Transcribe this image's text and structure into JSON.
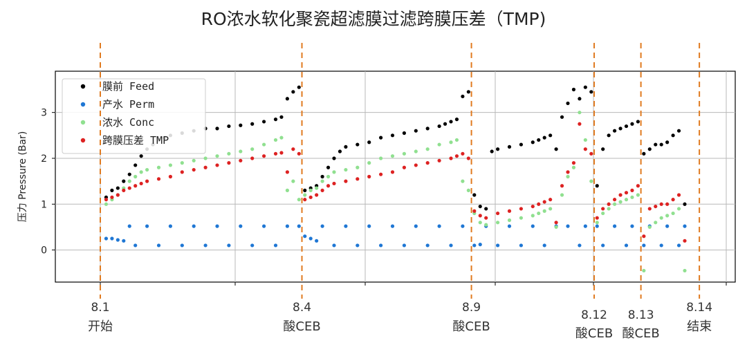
{
  "chart_data": {
    "type": "scatter",
    "title": "RO浓水软化聚瓷超滤膜过滤跨膜压差（TMP)",
    "ylabel": "压力 Pressure (Bar)",
    "ylim": [
      -0.7,
      3.9
    ],
    "xlim": [
      0,
      100
    ],
    "yticks": [
      0,
      1,
      2,
      3
    ],
    "grid": true,
    "legend_position": "top-left",
    "series": [
      {
        "name": "膜前 Feed",
        "color": "#000000",
        "points": [
          [
            1,
            1.15
          ],
          [
            2,
            1.3
          ],
          [
            3,
            1.35
          ],
          [
            4,
            1.5
          ],
          [
            5,
            1.65
          ],
          [
            6,
            1.85
          ],
          [
            7,
            2.05
          ],
          [
            8,
            2.2
          ],
          [
            9,
            2.3
          ],
          [
            10,
            2.4
          ],
          [
            11,
            2.45
          ],
          [
            12,
            2.5
          ],
          [
            14,
            2.55
          ],
          [
            16,
            2.6
          ],
          [
            18,
            2.65
          ],
          [
            20,
            2.65
          ],
          [
            22,
            2.7
          ],
          [
            24,
            2.72
          ],
          [
            26,
            2.75
          ],
          [
            28,
            2.8
          ],
          [
            30,
            2.85
          ],
          [
            31,
            2.9
          ],
          [
            32,
            3.3
          ],
          [
            33,
            3.45
          ],
          [
            34,
            3.55
          ],
          [
            35,
            1.3
          ],
          [
            36,
            1.35
          ],
          [
            37,
            1.4
          ],
          [
            38,
            1.6
          ],
          [
            39,
            1.8
          ],
          [
            40,
            2.0
          ],
          [
            41,
            2.15
          ],
          [
            42,
            2.25
          ],
          [
            44,
            2.3
          ],
          [
            46,
            2.35
          ],
          [
            48,
            2.45
          ],
          [
            50,
            2.5
          ],
          [
            52,
            2.55
          ],
          [
            54,
            2.6
          ],
          [
            56,
            2.65
          ],
          [
            58,
            2.7
          ],
          [
            59,
            2.75
          ],
          [
            60,
            2.8
          ],
          [
            61,
            2.85
          ],
          [
            62,
            3.35
          ],
          [
            63,
            3.45
          ],
          [
            64,
            1.2
          ],
          [
            65,
            0.95
          ],
          [
            66,
            0.9
          ],
          [
            67,
            2.15
          ],
          [
            68,
            2.2
          ],
          [
            70,
            2.25
          ],
          [
            72,
            2.3
          ],
          [
            74,
            2.35
          ],
          [
            75,
            2.4
          ],
          [
            76,
            2.45
          ],
          [
            77,
            2.5
          ],
          [
            78,
            2.2
          ],
          [
            79,
            2.9
          ],
          [
            80,
            3.2
          ],
          [
            81,
            3.5
          ],
          [
            82,
            3.3
          ],
          [
            83,
            3.55
          ],
          [
            84,
            3.45
          ],
          [
            85,
            1.4
          ],
          [
            86,
            2.2
          ],
          [
            87,
            2.5
          ],
          [
            88,
            2.6
          ],
          [
            89,
            2.65
          ],
          [
            90,
            2.7
          ],
          [
            91,
            2.75
          ],
          [
            92,
            2.8
          ],
          [
            93,
            2.1
          ],
          [
            94,
            2.2
          ],
          [
            95,
            2.3
          ],
          [
            96,
            2.3
          ],
          [
            97,
            2.35
          ],
          [
            98,
            2.5
          ],
          [
            99,
            2.6
          ],
          [
            100,
            1.0
          ]
        ]
      },
      {
        "name": "产水 Perm",
        "color": "#1f77d4",
        "points": [
          [
            1,
            0.25
          ],
          [
            2,
            0.25
          ],
          [
            3,
            0.22
          ],
          [
            4,
            0.2
          ],
          [
            5,
            0.52
          ],
          [
            8,
            0.52
          ],
          [
            12,
            0.52
          ],
          [
            16,
            0.52
          ],
          [
            20,
            0.52
          ],
          [
            24,
            0.52
          ],
          [
            28,
            0.52
          ],
          [
            32,
            0.52
          ],
          [
            34,
            0.52
          ],
          [
            35,
            0.3
          ],
          [
            36,
            0.25
          ],
          [
            37,
            0.2
          ],
          [
            38,
            0.52
          ],
          [
            42,
            0.52
          ],
          [
            46,
            0.52
          ],
          [
            50,
            0.52
          ],
          [
            54,
            0.52
          ],
          [
            58,
            0.52
          ],
          [
            62,
            0.52
          ],
          [
            64,
            0.1
          ],
          [
            65,
            0.12
          ],
          [
            66,
            0.52
          ],
          [
            70,
            0.52
          ],
          [
            74,
            0.52
          ],
          [
            78,
            0.52
          ],
          [
            80,
            0.52
          ],
          [
            83,
            0.52
          ],
          [
            85,
            0.52
          ],
          [
            88,
            0.52
          ],
          [
            91,
            0.52
          ],
          [
            93,
            0.1
          ],
          [
            94,
            0.52
          ],
          [
            97,
            0.52
          ],
          [
            100,
            0.52
          ],
          [
            6,
            0.1
          ],
          [
            10,
            0.1
          ],
          [
            14,
            0.1
          ],
          [
            18,
            0.1
          ],
          [
            22,
            0.1
          ],
          [
            26,
            0.1
          ],
          [
            30,
            0.1
          ],
          [
            40,
            0.1
          ],
          [
            44,
            0.1
          ],
          [
            48,
            0.1
          ],
          [
            52,
            0.1
          ],
          [
            56,
            0.1
          ],
          [
            60,
            0.1
          ],
          [
            68,
            0.1
          ],
          [
            72,
            0.1
          ],
          [
            76,
            0.1
          ],
          [
            82,
            0.1
          ],
          [
            86,
            0.1
          ],
          [
            90,
            0.1
          ],
          [
            96,
            0.1
          ],
          [
            99,
            0.1
          ]
        ]
      },
      {
        "name": "浓水 Conc",
        "color": "#90e090",
        "points": [
          [
            1,
            1.0
          ],
          [
            2,
            1.1
          ],
          [
            3,
            1.2
          ],
          [
            4,
            1.35
          ],
          [
            5,
            1.5
          ],
          [
            6,
            1.6
          ],
          [
            7,
            1.7
          ],
          [
            8,
            1.75
          ],
          [
            10,
            1.8
          ],
          [
            12,
            1.85
          ],
          [
            14,
            1.9
          ],
          [
            16,
            1.95
          ],
          [
            18,
            2.0
          ],
          [
            20,
            2.05
          ],
          [
            22,
            2.1
          ],
          [
            24,
            2.15
          ],
          [
            26,
            2.2
          ],
          [
            28,
            2.3
          ],
          [
            30,
            2.4
          ],
          [
            31,
            2.45
          ],
          [
            32,
            1.3
          ],
          [
            33,
            1.5
          ],
          [
            34,
            1.1
          ],
          [
            35,
            1.2
          ],
          [
            36,
            1.3
          ],
          [
            37,
            1.35
          ],
          [
            38,
            1.5
          ],
          [
            39,
            1.6
          ],
          [
            40,
            1.7
          ],
          [
            42,
            1.75
          ],
          [
            44,
            1.8
          ],
          [
            46,
            1.9
          ],
          [
            48,
            2.0
          ],
          [
            50,
            2.05
          ],
          [
            52,
            2.1
          ],
          [
            54,
            2.15
          ],
          [
            56,
            2.2
          ],
          [
            58,
            2.3
          ],
          [
            60,
            2.35
          ],
          [
            61,
            2.4
          ],
          [
            62,
            1.5
          ],
          [
            63,
            1.3
          ],
          [
            64,
            0.8
          ],
          [
            65,
            0.6
          ],
          [
            66,
            0.55
          ],
          [
            68,
            0.6
          ],
          [
            70,
            0.65
          ],
          [
            72,
            0.7
          ],
          [
            74,
            0.75
          ],
          [
            75,
            0.8
          ],
          [
            76,
            0.85
          ],
          [
            77,
            0.9
          ],
          [
            78,
            0.5
          ],
          [
            79,
            1.2
          ],
          [
            80,
            1.6
          ],
          [
            81,
            1.8
          ],
          [
            82,
            3.0
          ],
          [
            83,
            2.4
          ],
          [
            84,
            1.5
          ],
          [
            85,
            0.6
          ],
          [
            86,
            0.8
          ],
          [
            87,
            0.9
          ],
          [
            88,
            1.0
          ],
          [
            89,
            1.05
          ],
          [
            90,
            1.1
          ],
          [
            91,
            1.15
          ],
          [
            92,
            1.2
          ],
          [
            93,
            -0.45
          ],
          [
            94,
            0.5
          ],
          [
            95,
            0.6
          ],
          [
            96,
            0.7
          ],
          [
            97,
            0.75
          ],
          [
            98,
            0.8
          ],
          [
            99,
            0.9
          ],
          [
            100,
            -0.45
          ]
        ]
      },
      {
        "name": "跨膜压差 TMP",
        "color": "#dd2222",
        "points": [
          [
            1,
            1.1
          ],
          [
            2,
            1.15
          ],
          [
            3,
            1.2
          ],
          [
            4,
            1.3
          ],
          [
            5,
            1.35
          ],
          [
            6,
            1.4
          ],
          [
            7,
            1.45
          ],
          [
            8,
            1.5
          ],
          [
            10,
            1.55
          ],
          [
            12,
            1.6
          ],
          [
            14,
            1.7
          ],
          [
            16,
            1.75
          ],
          [
            18,
            1.8
          ],
          [
            20,
            1.85
          ],
          [
            22,
            1.9
          ],
          [
            24,
            1.95
          ],
          [
            26,
            2.0
          ],
          [
            28,
            2.05
          ],
          [
            30,
            2.1
          ],
          [
            31,
            2.12
          ],
          [
            32,
            1.7
          ],
          [
            33,
            2.2
          ],
          [
            34,
            2.1
          ],
          [
            35,
            1.1
          ],
          [
            36,
            1.15
          ],
          [
            37,
            1.2
          ],
          [
            38,
            1.3
          ],
          [
            39,
            1.4
          ],
          [
            40,
            1.45
          ],
          [
            42,
            1.5
          ],
          [
            44,
            1.55
          ],
          [
            46,
            1.6
          ],
          [
            48,
            1.65
          ],
          [
            50,
            1.7
          ],
          [
            52,
            1.8
          ],
          [
            54,
            1.85
          ],
          [
            56,
            1.9
          ],
          [
            58,
            1.95
          ],
          [
            60,
            2.0
          ],
          [
            61,
            2.05
          ],
          [
            62,
            2.1
          ],
          [
            63,
            2.0
          ],
          [
            64,
            0.85
          ],
          [
            65,
            0.75
          ],
          [
            66,
            0.7
          ],
          [
            68,
            0.8
          ],
          [
            70,
            0.85
          ],
          [
            72,
            0.9
          ],
          [
            74,
            0.95
          ],
          [
            75,
            1.0
          ],
          [
            76,
            1.05
          ],
          [
            77,
            1.1
          ],
          [
            78,
            0.6
          ],
          [
            79,
            1.4
          ],
          [
            80,
            1.7
          ],
          [
            81,
            1.9
          ],
          [
            82,
            2.75
          ],
          [
            83,
            2.2
          ],
          [
            84,
            2.1
          ],
          [
            85,
            0.7
          ],
          [
            86,
            0.9
          ],
          [
            87,
            1.0
          ],
          [
            88,
            1.1
          ],
          [
            89,
            1.2
          ],
          [
            90,
            1.25
          ],
          [
            91,
            1.3
          ],
          [
            92,
            1.4
          ],
          [
            93,
            0.3
          ],
          [
            94,
            0.9
          ],
          [
            95,
            0.95
          ],
          [
            96,
            1.0
          ],
          [
            97,
            1.0
          ],
          [
            98,
            1.1
          ],
          [
            99,
            1.2
          ],
          [
            100,
            0.2
          ]
        ]
      }
    ]
  },
  "events": [
    {
      "date": "8.1",
      "label": "开始",
      "x": 0
    },
    {
      "date": "8.4",
      "label": "酸CEB",
      "x": 34.5
    },
    {
      "date": "8.9",
      "label": "酸CEB",
      "x": 63.5
    },
    {
      "date": "8.12",
      "label": "酸CEB",
      "x": 84.5
    },
    {
      "date": "8.13",
      "label": "酸CEB",
      "x": 92.5
    },
    {
      "date": "8.14",
      "label": "结束",
      "x": 102.5
    }
  ],
  "colors": {
    "event_line": "#e07a1f",
    "grid": "#b8b8b8",
    "axis": "#000000"
  }
}
